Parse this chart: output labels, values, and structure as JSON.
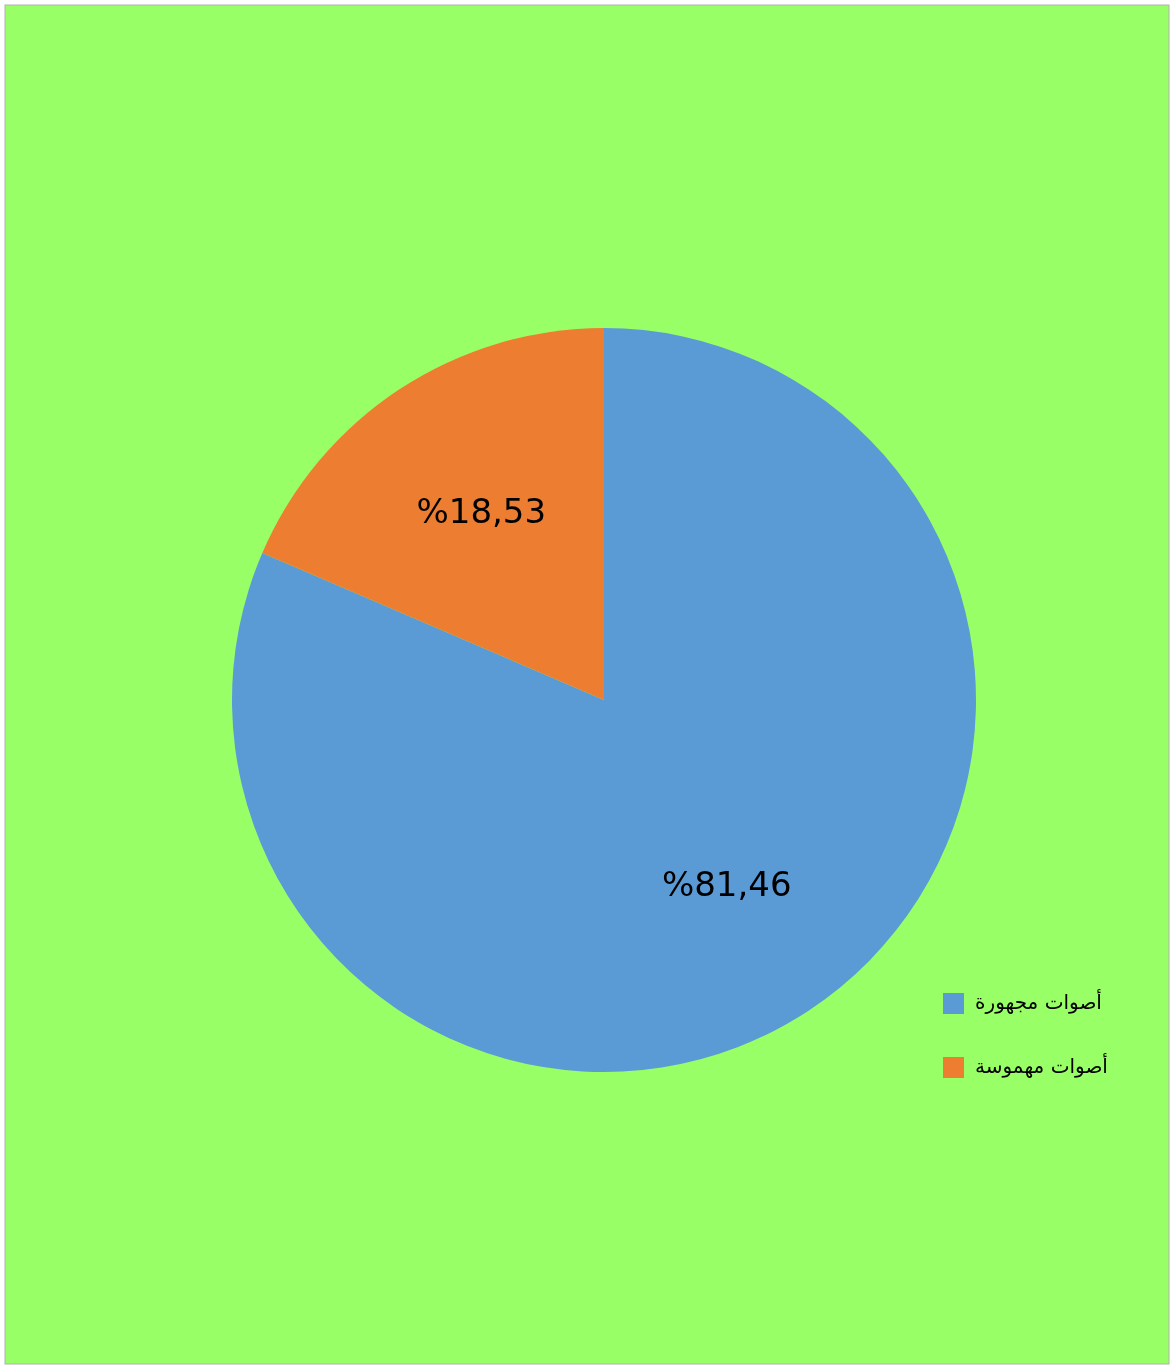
{
  "chart_data": {
    "type": "pie",
    "categories": [
      "أصوات مجهورة",
      "أصوات مهموسة"
    ],
    "values": [
      81.46,
      18.53
    ],
    "colors": [
      "#5b9bd5",
      "#ed7d31"
    ],
    "value_labels": [
      "%81,46",
      "%18,53"
    ],
    "legend": "right"
  }
}
